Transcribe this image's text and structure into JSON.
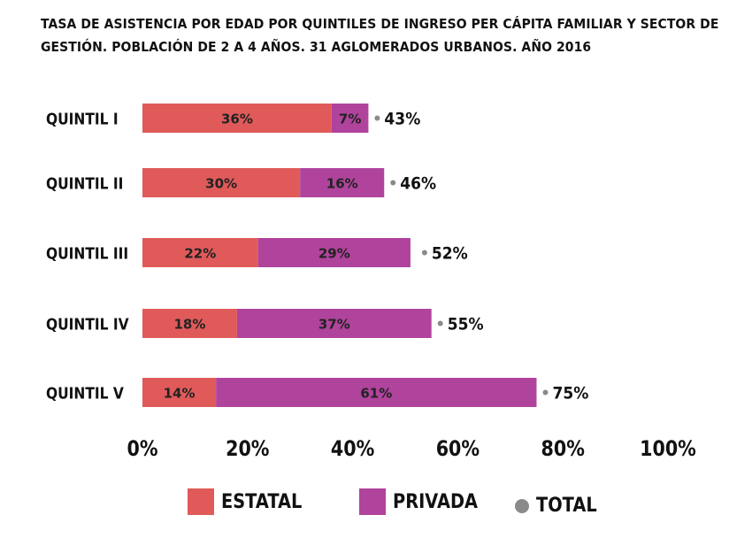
{
  "chart_data": {
    "type": "bar",
    "stacked": true,
    "orientation": "horizontal",
    "title_lines": [
      "TASA DE ASISTENCIA POR EDAD POR QUINTILES DE INGRESO PER CÁPITA FAMILIAR Y SECTOR DE",
      "GESTIÓN. POBLACIÓN DE 2 A 4 AÑOS. 31 AGLOMERADOS URBANOS. AÑO 2016"
    ],
    "categories": [
      "QUINTIL I",
      "QUINTIL II",
      "QUINTIL III",
      "QUINTIL IV",
      "QUINTIL V"
    ],
    "series": [
      {
        "name": "ESTATAL",
        "color": "#e05a5a",
        "values": [
          36,
          30,
          22,
          18,
          14
        ],
        "labels": [
          "36%",
          "30%",
          "22%",
          "18%",
          "14%"
        ]
      },
      {
        "name": "PRIVADA",
        "color": "#b0439c",
        "values": [
          7,
          16,
          29,
          37,
          61
        ],
        "labels": [
          "7%",
          "16%",
          "29%",
          "37%",
          "61%"
        ]
      }
    ],
    "total": {
      "name": "TOTAL",
      "color": "#8a8a8a",
      "values": [
        43,
        46,
        52,
        55,
        75
      ],
      "labels": [
        "43%",
        "46%",
        "52%",
        "55%",
        "75%"
      ]
    },
    "xlim": [
      0,
      100
    ],
    "xticks": [
      "0%",
      "20%",
      "40%",
      "60%",
      "80%",
      "100%"
    ],
    "legend_position": "bottom",
    "grid": false
  }
}
